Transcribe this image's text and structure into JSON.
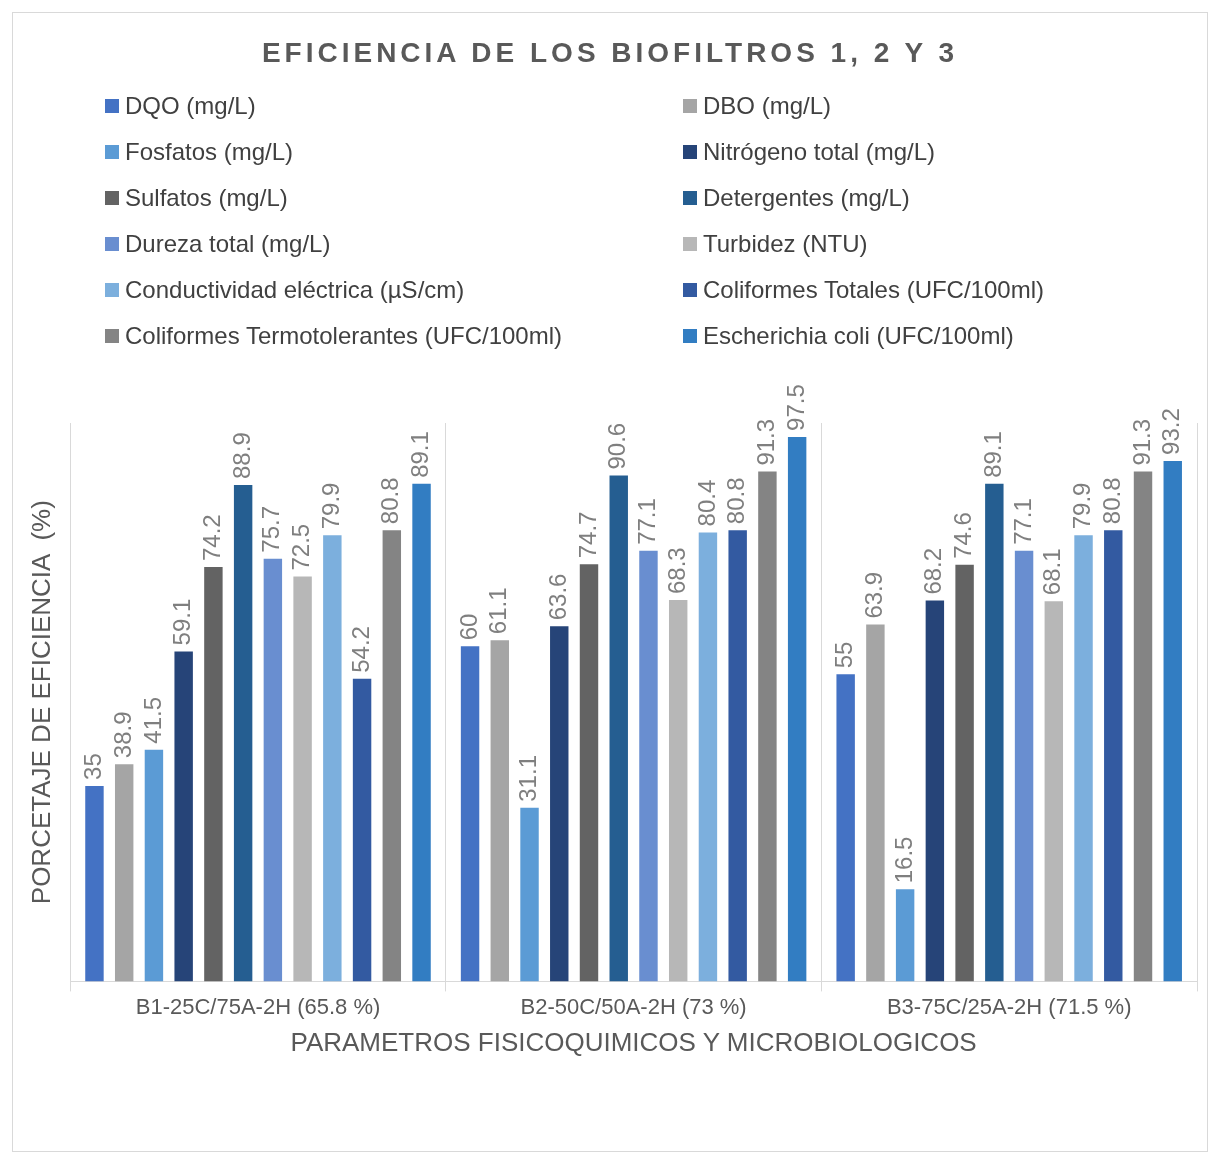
{
  "chart_data": {
    "type": "bar",
    "title": "EFICIENCIA DE LOS BIOFILTROS 1, 2 Y 3",
    "xlabel": "PARAMETROS FISICOQUIMICOS Y MICROBIOLOGICOS",
    "ylabel": "PORCETAJE DE EFICIENCIA  (%)",
    "categories": [
      "B1-25C/75A-2H (65.8 %)",
      "B2-50C/50A-2H (73 %)",
      "B3-75C/25A-2H (71.5 %)"
    ],
    "series": [
      {
        "name": "DQO (mg/L)",
        "color": "#4472c4",
        "values": [
          35,
          60,
          55
        ]
      },
      {
        "name": "DBO (mg/L)",
        "color": "#a5a5a5",
        "values": [
          38.9,
          61.1,
          63.9
        ]
      },
      {
        "name": "Fosfatos (mg/L)",
        "color": "#5b9bd5",
        "values": [
          41.5,
          31.1,
          16.5
        ]
      },
      {
        "name": "Nitrógeno total (mg/L)",
        "color": "#264478",
        "values": [
          59.1,
          63.6,
          68.2
        ]
      },
      {
        "name": "Sulfatos (mg/L)",
        "color": "#636363",
        "values": [
          74.2,
          74.7,
          74.6
        ]
      },
      {
        "name": "Detergentes (mg/L)",
        "color": "#255e91",
        "values": [
          88.9,
          90.6,
          89.1
        ]
      },
      {
        "name": "Dureza total (mg/L)",
        "color": "#698ed0",
        "values": [
          75.7,
          77.1,
          77.1
        ]
      },
      {
        "name": "Turbidez (NTU)",
        "color": "#b7b7b7",
        "values": [
          72.5,
          68.3,
          68.1
        ]
      },
      {
        "name": "Conductividad eléctrica (µS/cm)",
        "color": "#7cafdd",
        "values": [
          79.9,
          80.4,
          79.9
        ]
      },
      {
        "name": "Coliformes Totales (UFC/100ml)",
        "color": "#335aa1",
        "values": [
          54.2,
          80.8,
          80.8
        ]
      },
      {
        "name": "Coliformes Termotolerantes (UFC/100ml)",
        "color": "#848484",
        "values": [
          80.8,
          91.3,
          91.3
        ]
      },
      {
        "name": "Escherichia coli (UFC/100ml)",
        "color": "#327dc2",
        "values": [
          89.1,
          97.5,
          93.2
        ]
      }
    ],
    "data_labels": true,
    "grid": "x",
    "legend": "top"
  }
}
